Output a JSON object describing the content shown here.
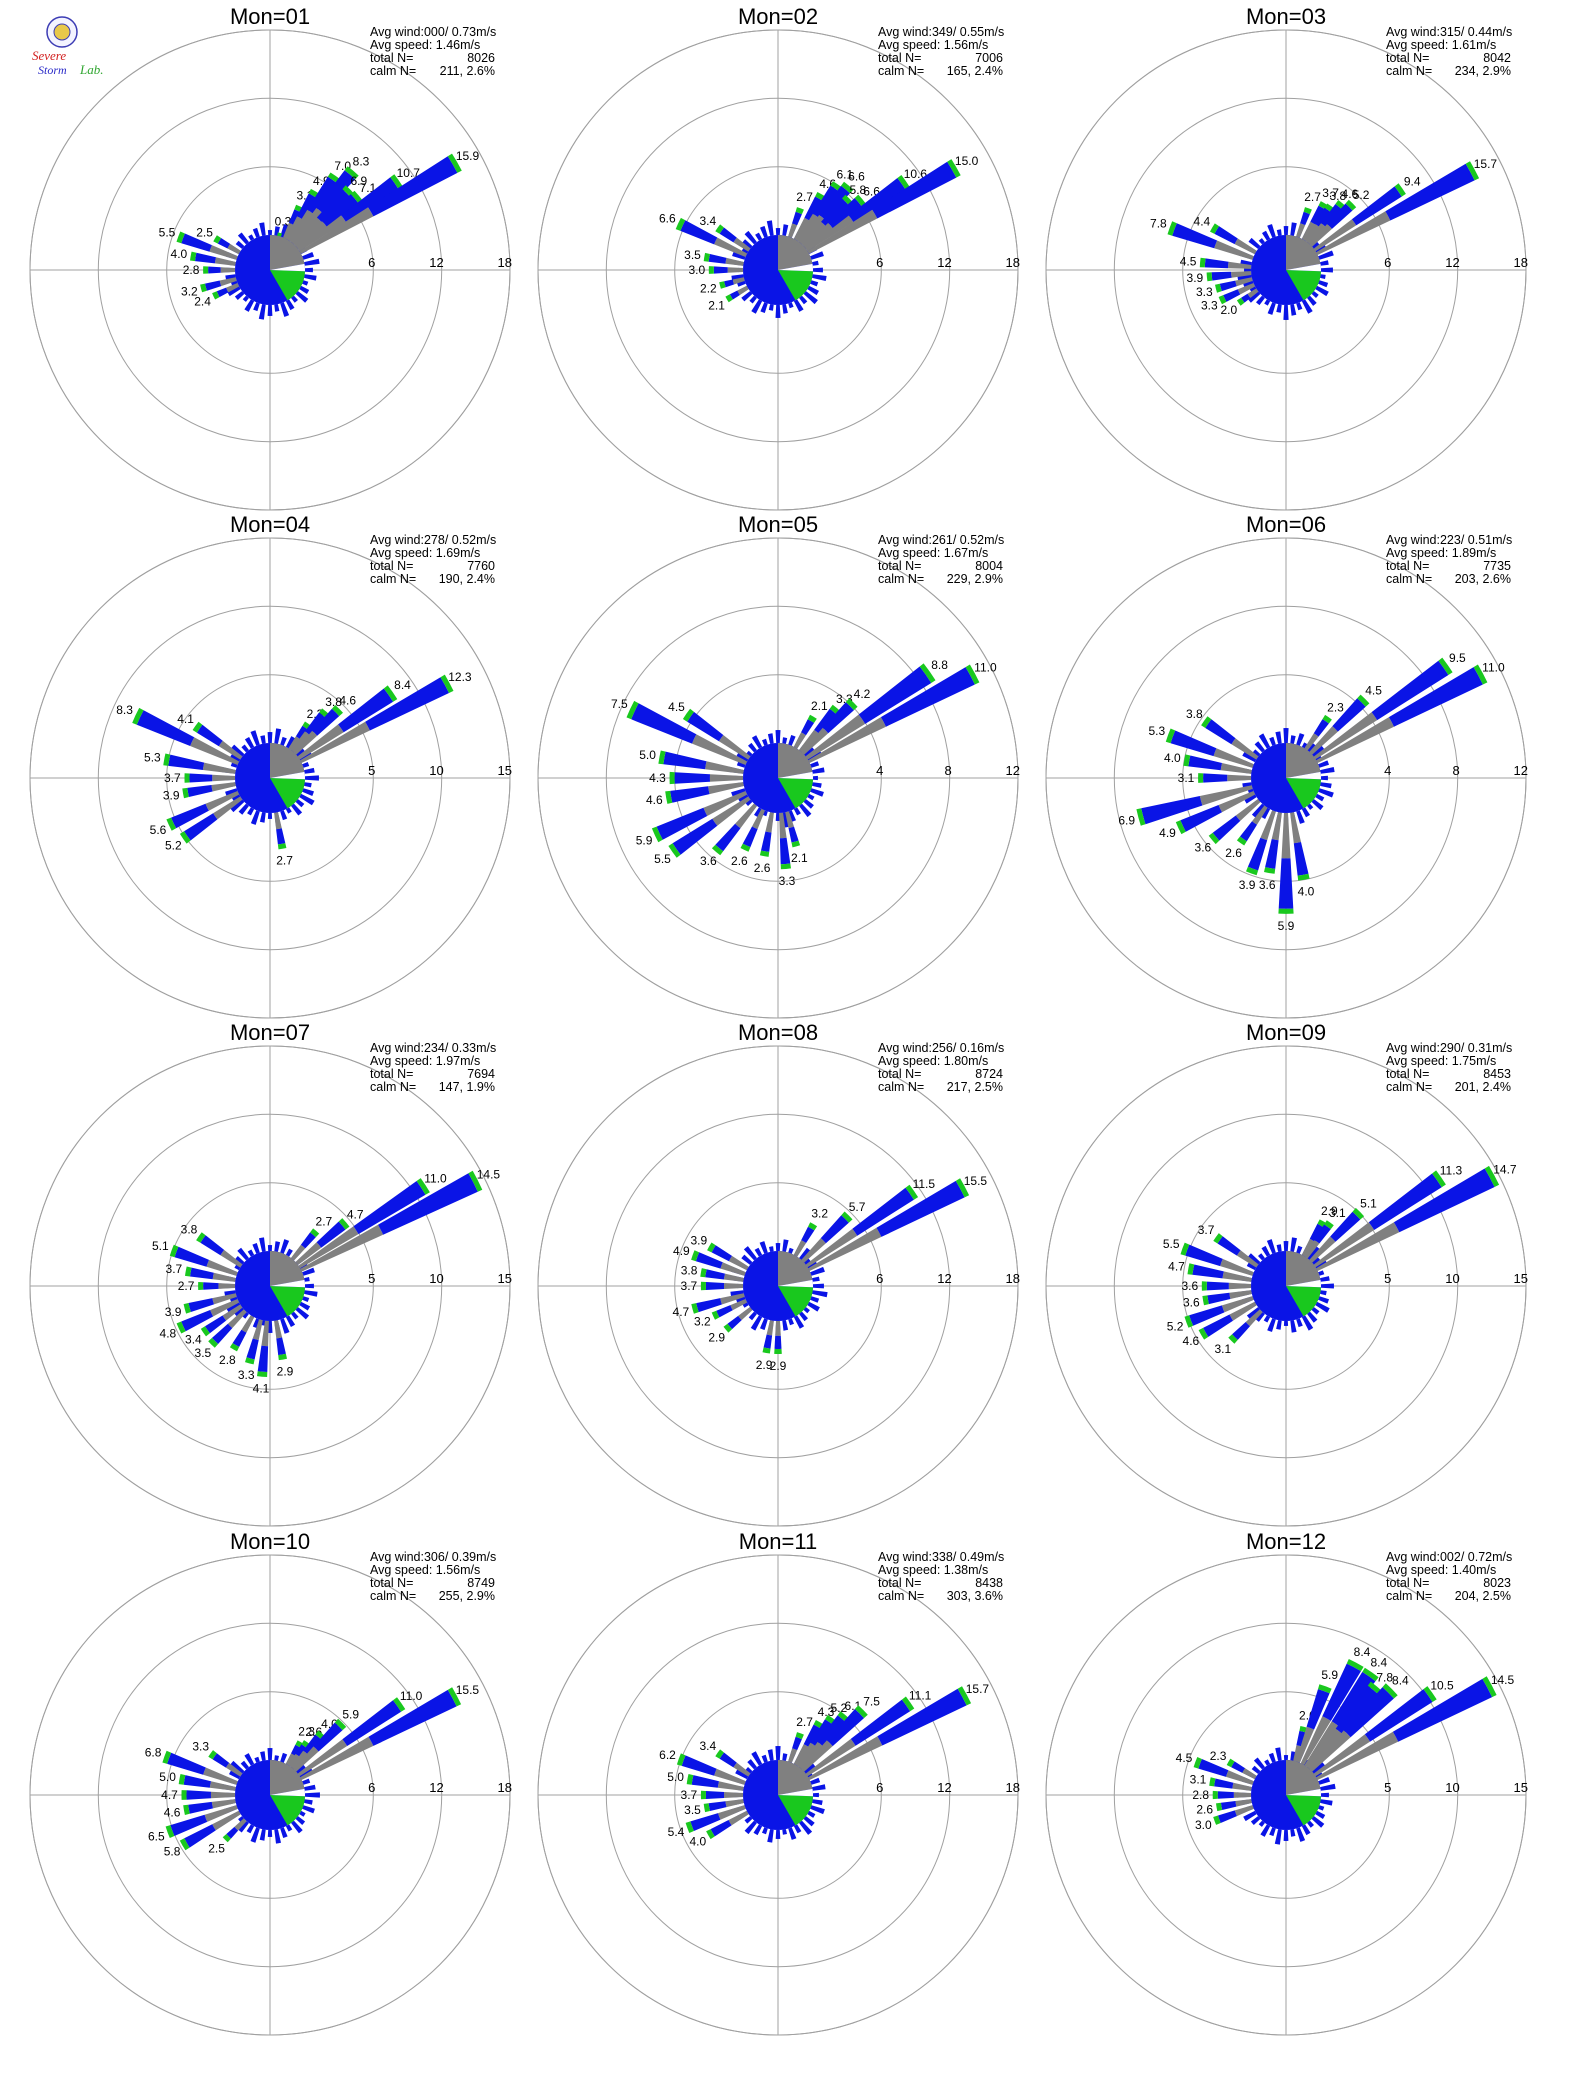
{
  "logo": {
    "word_severe": "Severe",
    "word_storm": "Storm",
    "word_lab": "Lab."
  },
  "colors": {
    "high": "#0a14e6",
    "mid": "#19c81e",
    "low": "#ff3c1e",
    "calm": "#808080",
    "grid": "#a0a0a0",
    "text": "#000000"
  },
  "stat_labels": {
    "wind": "Avg wind:",
    "speed": "Avg speed:",
    "total": "total N=",
    "calm": "calm N="
  },
  "chart_data": [
    {
      "type": "wind-rose",
      "title": "Mon=01",
      "rings": [
        6,
        12,
        18
      ],
      "stats": {
        "avg_wind": "000/ 0.73m/s",
        "avg_speed": "1.46m/s",
        "total_n": "8026",
        "calm_n": "211,",
        "calm_pct": "2.6%"
      },
      "petals": [
        [
          15,
          0.3
        ],
        [
          25,
          3.1
        ],
        [
          30,
          4.9
        ],
        [
          35,
          7.0
        ],
        [
          40,
          8.3
        ],
        [
          45,
          6.9
        ],
        [
          50,
          7.1
        ],
        [
          55,
          10.7
        ],
        [
          60,
          15.9
        ],
        [
          290,
          5.5
        ],
        [
          280,
          4.0
        ],
        [
          300,
          2.5
        ],
        [
          270,
          2.8
        ],
        [
          255,
          3.2
        ],
        [
          245,
          2.4
        ]
      ]
    },
    {
      "type": "wind-rose",
      "title": "Mon=02",
      "rings": [
        6,
        12,
        18
      ],
      "stats": {
        "avg_wind": "349/ 0.55m/s",
        "avg_speed": "1.56m/s",
        "total_n": "7006",
        "calm_n": "165,",
        "calm_pct": "2.4%"
      },
      "petals": [
        [
          20,
          2.7
        ],
        [
          30,
          4.6
        ],
        [
          35,
          6.1
        ],
        [
          40,
          6.6
        ],
        [
          45,
          5.8
        ],
        [
          50,
          6.6
        ],
        [
          55,
          10.6
        ],
        [
          60,
          15.0
        ],
        [
          295,
          6.6
        ],
        [
          305,
          3.4
        ],
        [
          280,
          3.5
        ],
        [
          270,
          3.0
        ],
        [
          255,
          2.2
        ],
        [
          240,
          2.1
        ]
      ]
    },
    {
      "type": "wind-rose",
      "title": "Mon=03",
      "rings": [
        6,
        12,
        18
      ],
      "stats": {
        "avg_wind": "315/ 0.44m/s",
        "avg_speed": "1.61m/s",
        "total_n": "8042",
        "calm_n": "234,",
        "calm_pct": "2.9%"
      },
      "petals": [
        [
          20,
          2.7
        ],
        [
          30,
          3.7
        ],
        [
          35,
          3.8
        ],
        [
          40,
          4.6
        ],
        [
          45,
          5.2
        ],
        [
          55,
          9.4
        ],
        [
          62,
          15.7
        ],
        [
          290,
          7.8
        ],
        [
          300,
          4.4
        ],
        [
          275,
          4.5
        ],
        [
          265,
          3.9
        ],
        [
          255,
          3.3
        ],
        [
          245,
          3.3
        ],
        [
          235,
          2.0
        ]
      ]
    },
    {
      "type": "wind-rose",
      "title": "Mon=04",
      "rings": [
        5,
        10,
        15
      ],
      "stats": {
        "avg_wind": "278/ 0.52m/s",
        "avg_speed": "1.69m/s",
        "total_n": "7760",
        "calm_n": "190,",
        "calm_pct": "2.4%"
      },
      "petals": [
        [
          35,
          2.3
        ],
        [
          40,
          3.8
        ],
        [
          45,
          4.6
        ],
        [
          55,
          8.4
        ],
        [
          62,
          12.3
        ],
        [
          295,
          8.3
        ],
        [
          305,
          4.1
        ],
        [
          280,
          5.3
        ],
        [
          270,
          3.7
        ],
        [
          260,
          3.9
        ],
        [
          245,
          5.6
        ],
        [
          235,
          5.2
        ],
        [
          170,
          2.7
        ]
      ]
    },
    {
      "type": "wind-rose",
      "title": "Mon=05",
      "rings": [
        4,
        8,
        12
      ],
      "stats": {
        "avg_wind": "261/ 0.52m/s",
        "avg_speed": "1.67m/s",
        "total_n": "8004",
        "calm_n": "229,",
        "calm_pct": "2.9%"
      },
      "petals": [
        [
          30,
          2.1
        ],
        [
          40,
          3.3
        ],
        [
          45,
          4.2
        ],
        [
          55,
          8.8
        ],
        [
          62,
          11.0
        ],
        [
          295,
          7.5
        ],
        [
          305,
          4.5
        ],
        [
          280,
          5.0
        ],
        [
          270,
          4.3
        ],
        [
          260,
          4.6
        ],
        [
          245,
          5.9
        ],
        [
          235,
          5.5
        ],
        [
          220,
          3.6
        ],
        [
          205,
          2.6
        ],
        [
          190,
          2.6
        ],
        [
          175,
          3.3
        ],
        [
          165,
          2.1
        ]
      ]
    },
    {
      "type": "wind-rose",
      "title": "Mon=06",
      "rings": [
        4,
        8,
        12
      ],
      "stats": {
        "avg_wind": "223/ 0.51m/s",
        "avg_speed": "1.89m/s",
        "total_n": "7735",
        "calm_n": "203,",
        "calm_pct": "2.6%"
      },
      "petals": [
        [
          35,
          2.3
        ],
        [
          45,
          4.5
        ],
        [
          55,
          9.5
        ],
        [
          62,
          11.0
        ],
        [
          290,
          5.3
        ],
        [
          305,
          3.8
        ],
        [
          280,
          4.0
        ],
        [
          270,
          3.1
        ],
        [
          255,
          6.9
        ],
        [
          245,
          4.9
        ],
        [
          230,
          3.6
        ],
        [
          215,
          2.6
        ],
        [
          200,
          3.9
        ],
        [
          190,
          3.6
        ],
        [
          180,
          5.9
        ],
        [
          170,
          4.0
        ]
      ]
    },
    {
      "type": "wind-rose",
      "title": "Mon=07",
      "rings": [
        5,
        10,
        15
      ],
      "stats": {
        "avg_wind": "234/ 0.33m/s",
        "avg_speed": "1.97m/s",
        "total_n": "7694",
        "calm_n": "147,",
        "calm_pct": "1.9%"
      },
      "petals": [
        [
          40,
          2.7
        ],
        [
          50,
          4.7
        ],
        [
          57,
          11.0
        ],
        [
          63,
          14.5
        ],
        [
          290,
          5.1
        ],
        [
          305,
          3.8
        ],
        [
          280,
          3.7
        ],
        [
          270,
          2.7
        ],
        [
          255,
          3.9
        ],
        [
          245,
          4.8
        ],
        [
          235,
          3.4
        ],
        [
          225,
          3.5
        ],
        [
          210,
          2.8
        ],
        [
          195,
          3.3
        ],
        [
          185,
          4.1
        ],
        [
          170,
          2.9
        ]
      ]
    },
    {
      "type": "wind-rose",
      "title": "Mon=08",
      "rings": [
        6,
        12,
        18
      ],
      "stats": {
        "avg_wind": "256/ 0.16m/s",
        "avg_speed": "1.80m/s",
        "total_n": "8724",
        "calm_n": "217,",
        "calm_pct": "2.5%"
      },
      "petals": [
        [
          30,
          3.2
        ],
        [
          45,
          5.7
        ],
        [
          55,
          11.5
        ],
        [
          62,
          15.5
        ],
        [
          290,
          4.9
        ],
        [
          300,
          3.9
        ],
        [
          280,
          3.8
        ],
        [
          270,
          3.7
        ],
        [
          255,
          4.7
        ],
        [
          245,
          3.2
        ],
        [
          230,
          2.9
        ],
        [
          190,
          2.9
        ],
        [
          180,
          2.9
        ]
      ]
    },
    {
      "type": "wind-rose",
      "title": "Mon=09",
      "rings": [
        5,
        10,
        15
      ],
      "stats": {
        "avg_wind": "290/ 0.31m/s",
        "avg_speed": "1.75m/s",
        "total_n": "8453",
        "calm_n": "201,",
        "calm_pct": "2.4%"
      },
      "petals": [
        [
          30,
          2.9
        ],
        [
          35,
          3.1
        ],
        [
          45,
          5.1
        ],
        [
          55,
          11.3
        ],
        [
          62,
          14.7
        ],
        [
          290,
          5.5
        ],
        [
          305,
          3.7
        ],
        [
          280,
          4.7
        ],
        [
          270,
          3.6
        ],
        [
          260,
          3.6
        ],
        [
          250,
          5.2
        ],
        [
          240,
          4.6
        ],
        [
          225,
          3.1
        ]
      ]
    },
    {
      "type": "wind-rose",
      "title": "Mon=10",
      "rings": [
        6,
        12,
        18
      ],
      "stats": {
        "avg_wind": "306/ 0.39m/s",
        "avg_speed": "1.56m/s",
        "total_n": "8749",
        "calm_n": "255,",
        "calm_pct": "2.9%"
      },
      "petals": [
        [
          30,
          2.3
        ],
        [
          35,
          2.6
        ],
        [
          40,
          4.0
        ],
        [
          45,
          5.9
        ],
        [
          55,
          11.0
        ],
        [
          62,
          15.5
        ],
        [
          290,
          6.8
        ],
        [
          305,
          3.3
        ],
        [
          280,
          5.0
        ],
        [
          270,
          4.7
        ],
        [
          260,
          4.6
        ],
        [
          250,
          6.5
        ],
        [
          240,
          5.8
        ],
        [
          225,
          2.5
        ]
      ]
    },
    {
      "type": "wind-rose",
      "title": "Mon=11",
      "rings": [
        6,
        12,
        18
      ],
      "stats": {
        "avg_wind": "338/ 0.49m/s",
        "avg_speed": "1.38m/s",
        "total_n": "8438",
        "calm_n": "303,",
        "calm_pct": "3.6%"
      },
      "petals": [
        [
          20,
          2.7
        ],
        [
          30,
          4.3
        ],
        [
          35,
          5.2
        ],
        [
          40,
          6.1
        ],
        [
          45,
          7.5
        ],
        [
          55,
          11.1
        ],
        [
          62,
          15.7
        ],
        [
          290,
          6.2
        ],
        [
          305,
          3.4
        ],
        [
          280,
          5.0
        ],
        [
          270,
          3.7
        ],
        [
          260,
          3.5
        ],
        [
          250,
          5.4
        ],
        [
          240,
          4.0
        ]
      ]
    },
    {
      "type": "wind-rose",
      "title": "Mon=12",
      "rings": [
        5,
        10,
        15
      ],
      "stats": {
        "avg_wind": "002/ 0.72m/s",
        "avg_speed": "1.40m/s",
        "total_n": "8023",
        "calm_n": "204,",
        "calm_pct": "2.5%"
      },
      "petals": [
        [
          15,
          2.6
        ],
        [
          20,
          5.9
        ],
        [
          28,
          8.4
        ],
        [
          35,
          8.4
        ],
        [
          40,
          7.8
        ],
        [
          45,
          8.4
        ],
        [
          55,
          10.5
        ],
        [
          62,
          14.5
        ],
        [
          290,
          4.5
        ],
        [
          300,
          2.3
        ],
        [
          280,
          3.1
        ],
        [
          270,
          2.8
        ],
        [
          260,
          2.6
        ],
        [
          250,
          3.0
        ]
      ]
    }
  ]
}
